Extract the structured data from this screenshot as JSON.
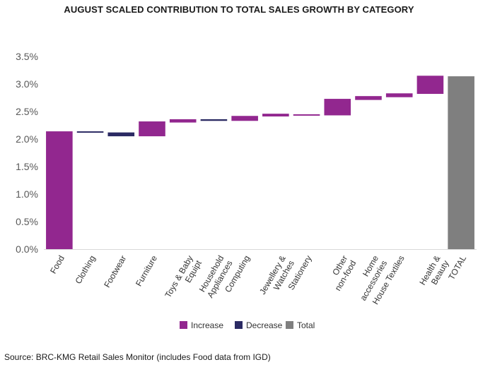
{
  "title": "AUGUST SCALED CONTRIBUTION TO TOTAL SALES GROWTH BY CATEGORY",
  "source": "Source: BRC-KMG Retail Sales Monitor (includes Food data from IGD)",
  "colors": {
    "increase": "#92278F",
    "decrease": "#2B2A63",
    "total": "#7F7F7F",
    "grid": "#D9D9D9",
    "text": "#595959"
  },
  "chart_data": {
    "type": "waterfall",
    "title": "AUGUST SCALED CONTRIBUTION TO TOTAL SALES GROWTH BY CATEGORY",
    "ylim": [
      0,
      3.5
    ],
    "y_ticks": [
      "0.0%",
      "0.5%",
      "1.0%",
      "1.5%",
      "2.0%",
      "2.5%",
      "3.0%",
      "3.5%"
    ],
    "y_tick_values": [
      0,
      0.5,
      1.0,
      1.5,
      2.0,
      2.5,
      3.0,
      3.5
    ],
    "grid": false,
    "legend": [
      "Increase",
      "Decrease",
      "Total"
    ],
    "legend_placement": "bottom",
    "categories": [
      "Food",
      "Clothing",
      "Footwear",
      "Furniture",
      "Toys & Baby Equipt",
      "Household Appliances",
      "Computing",
      "Jewellery & Watches",
      "Stationery",
      "Other non-food",
      "Home accessories",
      "House Textiles",
      "Health & Beauty",
      "TOTAL"
    ],
    "category_lines": [
      [
        "Food"
      ],
      [
        "Clothing"
      ],
      [
        "Footwear"
      ],
      [
        "Furniture"
      ],
      [
        "Toys & Baby",
        "Equipt"
      ],
      [
        "Household",
        "Appliances"
      ],
      [
        "Computing"
      ],
      [
        "Jewellery &",
        "Watches"
      ],
      [
        "Stationery"
      ],
      [
        "Other",
        "non-food"
      ],
      [
        "Home",
        "accessories"
      ],
      [
        "House Textiles"
      ],
      [
        "Health &",
        "Beauty"
      ],
      [
        "TOTAL"
      ]
    ],
    "bars": [
      {
        "category": "Food",
        "kind": "increase",
        "start": 0.0,
        "end": 2.14
      },
      {
        "category": "Clothing",
        "kind": "decrease",
        "start": 2.14,
        "end": 2.12
      },
      {
        "category": "Footwear",
        "kind": "decrease",
        "start": 2.12,
        "end": 2.05
      },
      {
        "category": "Furniture",
        "kind": "increase",
        "start": 2.05,
        "end": 2.32
      },
      {
        "category": "Toys & Baby Equipt",
        "kind": "increase",
        "start": 2.3,
        "end": 2.36
      },
      {
        "category": "Household Appliances",
        "kind": "decrease",
        "start": 2.36,
        "end": 2.33
      },
      {
        "category": "Computing",
        "kind": "increase",
        "start": 2.33,
        "end": 2.42
      },
      {
        "category": "Jewellery & Watches",
        "kind": "increase",
        "start": 2.41,
        "end": 2.46
      },
      {
        "category": "Stationery",
        "kind": "increase",
        "start": 2.44,
        "end": 2.45
      },
      {
        "category": "Other non-food",
        "kind": "increase",
        "start": 2.43,
        "end": 2.73
      },
      {
        "category": "Home accessories",
        "kind": "increase",
        "start": 2.71,
        "end": 2.78
      },
      {
        "category": "House Textiles",
        "kind": "increase",
        "start": 2.76,
        "end": 2.83
      },
      {
        "category": "Health & Beauty",
        "kind": "increase",
        "start": 2.82,
        "end": 3.15
      },
      {
        "category": "TOTAL",
        "kind": "total",
        "start": 0.0,
        "end": 3.14
      }
    ]
  }
}
